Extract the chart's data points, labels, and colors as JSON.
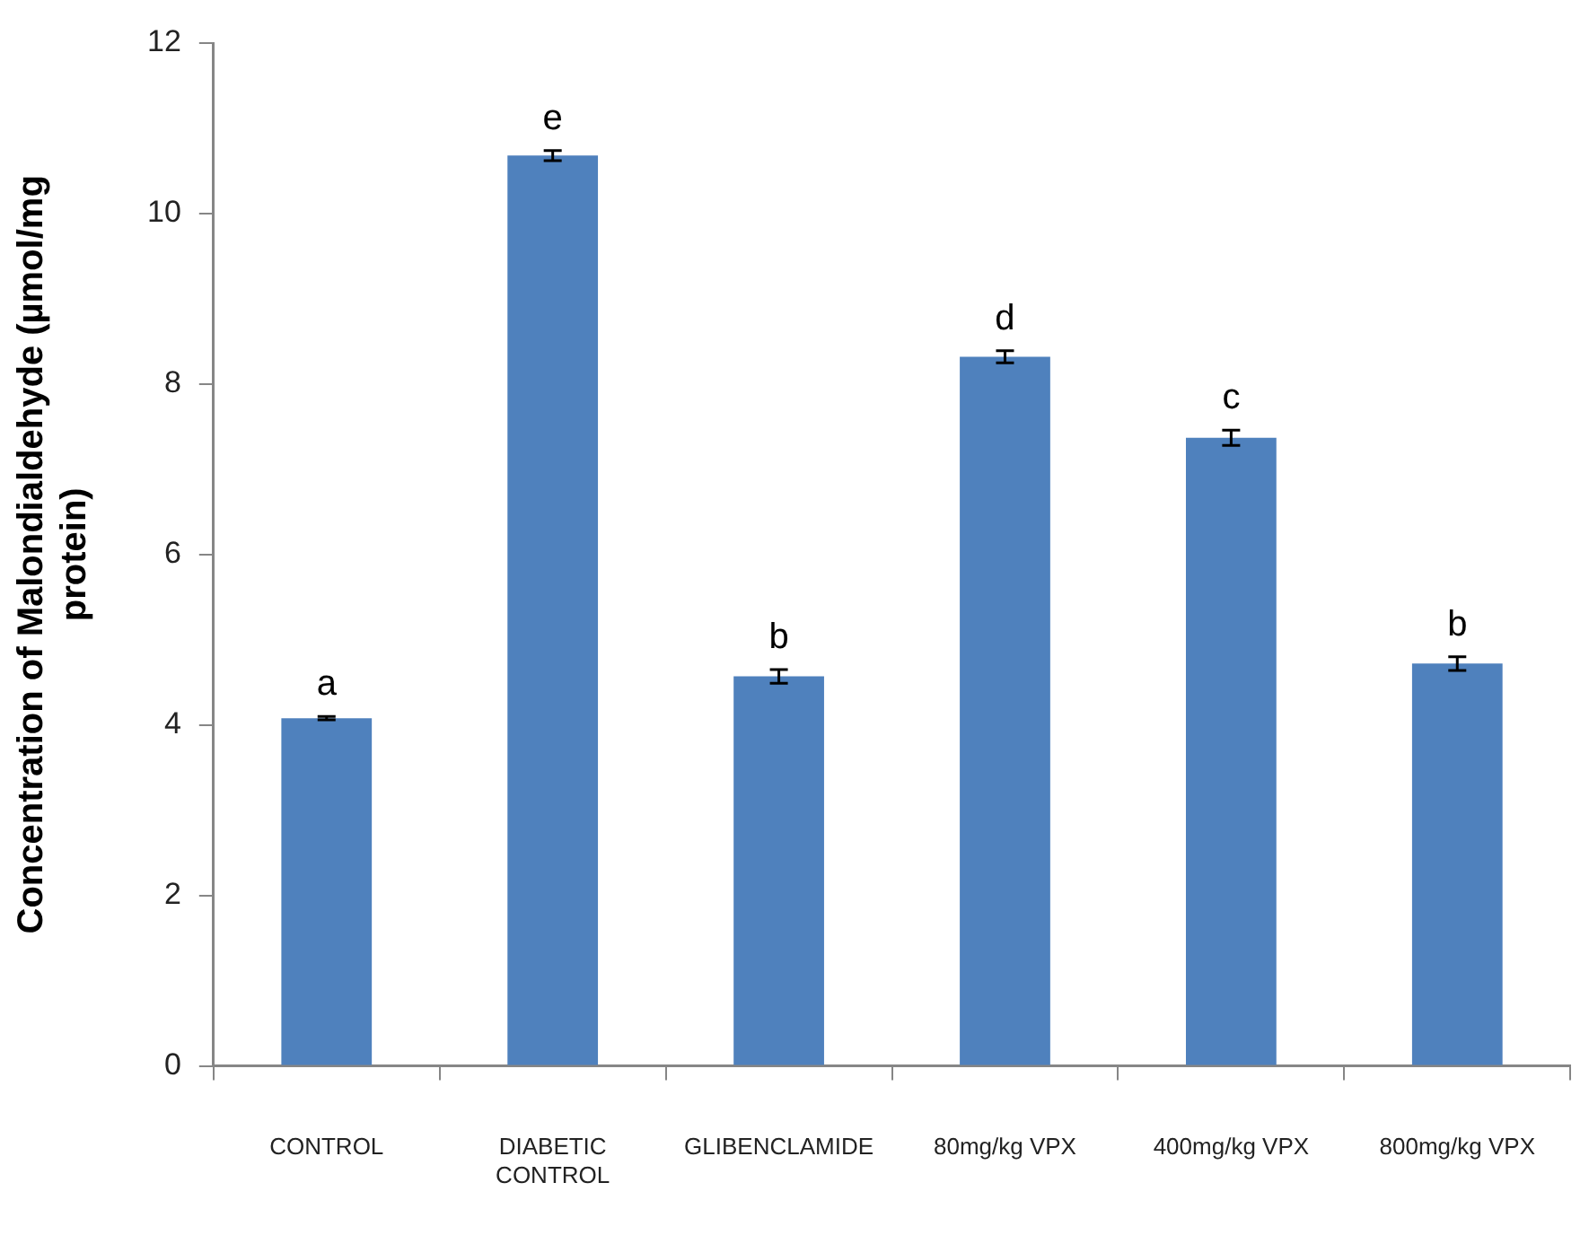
{
  "chart_data": {
    "type": "bar",
    "ylabel": "Concentration of Malondialdehyde (µmol/mg protein)",
    "categories": [
      "CONTROL",
      "DIABETIC CONTROL",
      "GLIBENCLAMIDE",
      "80mg/kg VPX",
      "400mg/kg VPX",
      "800mg/kg VPX"
    ],
    "values": [
      4.08,
      10.68,
      4.57,
      8.32,
      7.37,
      4.72
    ],
    "errors": [
      0.02,
      0.06,
      0.08,
      0.07,
      0.09,
      0.08
    ],
    "color": "#4f81bd",
    "ylim": [
      0,
      12
    ],
    "yticks": [
      0,
      2,
      4,
      6,
      8,
      10,
      12
    ],
    "grid": false,
    "legend": false,
    "annotations": [
      {
        "text": "a",
        "x": "CONTROL",
        "y": 4.08
      },
      {
        "text": "e",
        "x": "DIABETIC CONTROL",
        "y": 10.68
      },
      {
        "text": "b",
        "x": "GLIBENCLAMIDE",
        "y": 4.57
      },
      {
        "text": "d",
        "x": "80mg/kg VPX",
        "y": 8.32
      },
      {
        "text": "c",
        "x": "400mg/kg VPX",
        "y": 7.37
      },
      {
        "text": "b",
        "x": "800mg/kg VPX",
        "y": 4.72
      }
    ]
  }
}
